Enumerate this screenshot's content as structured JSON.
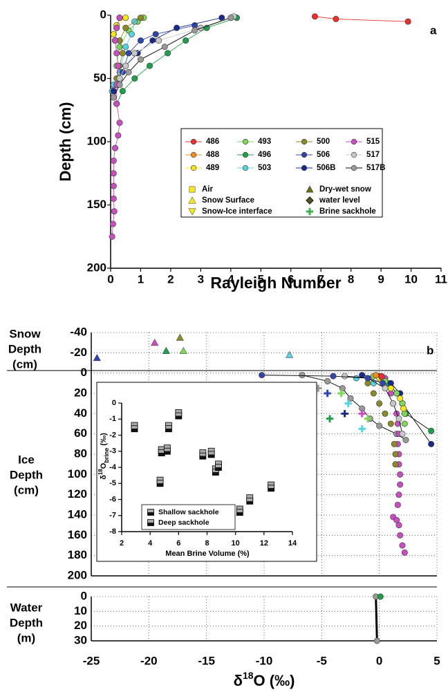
{
  "chart_data": [
    {
      "type": "line",
      "panel_label": "a",
      "xlabel": "Rayleigh Number",
      "ylabel": "Depth (cm)",
      "xlim": [
        0,
        11
      ],
      "xticks": [
        0,
        1,
        2,
        3,
        4,
        5,
        6,
        7,
        8,
        9,
        10,
        11
      ],
      "ylim": [
        200,
        0
      ],
      "yticks": [
        0,
        50,
        100,
        150,
        200
      ],
      "grid": false,
      "series": [
        {
          "name": "486",
          "color": "#e8312f",
          "marker": "circle",
          "line": true,
          "x": [
            6.8,
            7.5,
            9.9
          ],
          "values": [
            1,
            3,
            5
          ]
        },
        {
          "name": "488",
          "color": "#f58a20",
          "marker": "circle",
          "line": true,
          "x": [
            0.3,
            0.2,
            0.15
          ],
          "values": [
            2,
            10,
            20
          ]
        },
        {
          "name": "489",
          "color": "#f5e61e",
          "marker": "circle",
          "line": true,
          "x": [
            0.5,
            0.2,
            0.1
          ],
          "values": [
            2,
            8,
            15
          ]
        },
        {
          "name": "493",
          "color": "#7fd65b",
          "marker": "circle",
          "line": true,
          "x": [
            1.1,
            0.9,
            0.6,
            0.3,
            0.2
          ],
          "values": [
            2,
            5,
            12,
            25,
            40
          ]
        },
        {
          "name": "496",
          "color": "#1f9f4a",
          "marker": "circle",
          "line": true,
          "x": [
            4.2,
            3.2,
            2.5,
            1.9,
            1.3,
            0.8,
            0.4,
            0.2
          ],
          "values": [
            2,
            10,
            20,
            30,
            40,
            50,
            60,
            70
          ]
        },
        {
          "name": "503",
          "color": "#5bd1e0",
          "marker": "circle",
          "line": true,
          "x": [
            0.8,
            0.7,
            0.5,
            0.3,
            0.1,
            0.05
          ],
          "values": [
            5,
            15,
            25,
            45,
            55,
            60
          ]
        },
        {
          "name": "500",
          "color": "#8a8a2a",
          "marker": "circle",
          "line": true,
          "x": [
            1,
            0.5,
            0.3,
            0.4,
            0.3,
            0.2
          ],
          "values": [
            2,
            10,
            20,
            30,
            40,
            50
          ]
        },
        {
          "name": "506",
          "color": "#3344aa",
          "marker": "circle",
          "line": true,
          "x": [
            2.8,
            1.5,
            1,
            0.6,
            0.4
          ],
          "values": [
            8,
            15,
            20,
            30,
            45
          ]
        },
        {
          "name": "506B",
          "color": "#1a2a8a",
          "marker": "circle",
          "line": true,
          "x": [
            3.7,
            2.2,
            1.4,
            0.9,
            0.5,
            0.3,
            0.1
          ],
          "values": [
            2,
            10,
            20,
            30,
            40,
            50,
            60
          ]
        },
        {
          "name": "515",
          "color": "#c84fbf",
          "marker": "circle",
          "line": true,
          "x": [
            0.3,
            0.2,
            0.15,
            0.2,
            0.25,
            0.2,
            0.2,
            0.3,
            0.25,
            0.15,
            0.1,
            0.1,
            0.1,
            0.1,
            0.12,
            0.08,
            0.05
          ],
          "values": [
            2,
            10,
            20,
            30,
            40,
            55,
            70,
            85,
            95,
            105,
            115,
            125,
            135,
            145,
            155,
            165,
            175
          ]
        },
        {
          "name": "517",
          "color": "#c8c8c8",
          "marker": "circle",
          "line": true,
          "x": [
            4.1,
            3,
            1.6,
            0.8,
            0.5,
            0.3
          ],
          "values": [
            1,
            10,
            20,
            30,
            40,
            50
          ]
        },
        {
          "name": "517B",
          "color": "#999999",
          "marker": "circle",
          "line": true,
          "line_color": "#000000",
          "x": [
            4,
            2.8,
            1.8,
            1,
            0.6,
            0.3,
            0.1
          ],
          "values": [
            2,
            12,
            25,
            35,
            45,
            55,
            65
          ]
        }
      ],
      "marker_legend": [
        {
          "name": "Air",
          "color": "#f5e61e",
          "marker": "square"
        },
        {
          "name": "Snow Surface",
          "color": "#f5e61e",
          "marker": "tri-up"
        },
        {
          "name": "Snow-Ice interface",
          "color": "#f5e61e",
          "marker": "tri-down"
        },
        {
          "name": "Dry-wet snow",
          "color": "#6b6b1e",
          "marker": "tri-up"
        },
        {
          "name": "water level",
          "color": "#555522",
          "marker": "diamond"
        },
        {
          "name": "Brine sackhole",
          "color": "#3cb04a",
          "marker": "plus"
        }
      ]
    },
    {
      "type": "scatter",
      "panel_label": "b",
      "snow_ylabel_lines": [
        "Snow",
        "Depth",
        "(cm)"
      ],
      "ice_ylabel_lines": [
        "Ice",
        "Depth",
        "(cm)"
      ],
      "xlim": [
        -25,
        5
      ],
      "xticks": [
        -25,
        -20,
        -15,
        -10,
        -5,
        0,
        5
      ],
      "xtick_labels": false,
      "ylim": [
        200,
        -40
      ],
      "yticks": [
        -40,
        -20,
        0,
        20,
        40,
        60,
        80,
        100,
        120,
        140,
        160,
        180,
        200
      ],
      "grid": true,
      "series": [
        {
          "name": "517B",
          "color": "#999999",
          "marker": "circle",
          "line": true,
          "line_color": "#000000",
          "x": [
            -6.7,
            -4.5,
            -3.2,
            -2.5,
            -1.5,
            -0.8,
            0,
            1.5,
            2.3
          ],
          "values": [
            2,
            8,
            15,
            25,
            35,
            45,
            52,
            60,
            66
          ]
        },
        {
          "name": "515",
          "color": "#c84fbf",
          "marker": "circle",
          "line": false,
          "x": [
            0.5,
            0.8,
            1,
            1.2,
            1.5,
            1.6,
            1.7,
            1.6,
            1.7,
            1.7,
            1.8,
            1.8,
            1.7,
            1.6,
            1.2,
            1.5,
            1.7,
            1.8,
            2,
            2.2
          ],
          "values": [
            5,
            10,
            20,
            30,
            40,
            50,
            60,
            70,
            80,
            90,
            100,
            110,
            120,
            130,
            142,
            145,
            150,
            160,
            170,
            177
          ]
        },
        {
          "name": "496",
          "color": "#1f9f4a",
          "marker": "circle",
          "line": true,
          "line_color": "#000000",
          "x": [
            0,
            0.8,
            1.5,
            2,
            2.3,
            4.5
          ],
          "values": [
            3,
            10,
            20,
            30,
            40,
            57
          ]
        },
        {
          "name": "506B",
          "color": "#1a2a8a",
          "marker": "circle",
          "line": true,
          "line_color": "#000000",
          "x": [
            -1.5,
            0,
            1,
            1.8,
            2,
            4.5
          ],
          "values": [
            2,
            4,
            10,
            20,
            30,
            70
          ]
        },
        {
          "name": "500",
          "color": "#8a8a2a",
          "marker": "circle",
          "line": false,
          "x": [
            -1,
            -0.5,
            0,
            0.5,
            1,
            1.3,
            1.4,
            1.4
          ],
          "values": [
            10,
            20,
            30,
            40,
            50,
            70,
            80,
            90
          ]
        },
        {
          "name": "493",
          "color": "#7fd65b",
          "marker": "circle",
          "line": false,
          "x": [
            -0.5,
            0.5,
            1.5,
            2,
            2.2,
            2.2
          ],
          "values": [
            3,
            8,
            20,
            30,
            40,
            50
          ]
        },
        {
          "name": "489",
          "color": "#f5e61e",
          "marker": "circle",
          "line": false,
          "x": [
            0,
            1,
            1.8,
            2.1
          ],
          "values": [
            5,
            15,
            25,
            35
          ]
        },
        {
          "name": "488",
          "color": "#f58a20",
          "marker": "circle",
          "line": false,
          "x": [
            -0.3,
            0.2
          ],
          "values": [
            2,
            4
          ]
        },
        {
          "name": "486",
          "color": "#e8312f",
          "marker": "circle",
          "line": false,
          "x": [
            0.2
          ],
          "values": [
            3
          ]
        },
        {
          "name": "503",
          "color": "#5bd1e0",
          "marker": "circle",
          "line": false,
          "x": [
            -2,
            -0.5
          ],
          "values": [
            5,
            10
          ]
        },
        {
          "name": "517",
          "color": "#c8c8c8",
          "marker": "circle",
          "line": true,
          "line_color": "#000000",
          "x": [
            -3,
            -1,
            0.5,
            1.2,
            1.7,
            2
          ],
          "values": [
            3,
            5,
            15,
            30,
            45,
            60
          ]
        },
        {
          "name": "506",
          "color": "#3344aa",
          "marker": "circle",
          "line": true,
          "line_color": "#000000",
          "x": [
            -10.2,
            -4,
            -1,
            0.3
          ],
          "values": [
            2,
            3,
            5,
            10
          ]
        },
        {
          "name": "Snow Surface",
          "marker": "tri-up",
          "line": false,
          "colors": [
            "#3344aa",
            "#c84fbf",
            "#1f9f4a",
            "#8a8a2a",
            "#7fd65b",
            "#5bd1e0"
          ],
          "x": [
            -24.5,
            -19.5,
            -18.5,
            -17.3,
            -17,
            -7.8
          ],
          "values": [
            -15,
            -30,
            -22,
            -35,
            -22,
            -18
          ]
        },
        {
          "name": "Brine sackhole",
          "marker": "plus",
          "line": false,
          "colors": [
            "#1f9f4a",
            "#999999",
            "#c8c8c8",
            "#1f9f4a",
            "#7fd65b",
            "#3344aa",
            "#5bd1e0",
            "#1a2a8a",
            "#c84fbf",
            "#7fd65b",
            "#5bd1e0"
          ],
          "x": [
            -12.8,
            -5.3,
            -6.2,
            -4.3,
            -3.3,
            -4.5,
            -2.7,
            -3,
            -1.5,
            -1,
            -1.5
          ],
          "values": [
            20,
            15,
            45,
            45,
            20,
            20,
            30,
            40,
            40,
            45,
            55
          ]
        }
      ]
    },
    {
      "type": "scatter",
      "water_ylabel_lines": [
        "Water",
        "Depth",
        "(m)"
      ],
      "xlabel_parts": [
        "δ",
        "18",
        "O (‰)"
      ],
      "xlim": [
        -25,
        5
      ],
      "xticks": [
        -25,
        -20,
        -15,
        -10,
        -5,
        0,
        5
      ],
      "ylim": [
        30,
        0
      ],
      "yticks": [
        0,
        10,
        20,
        30
      ],
      "grid": true,
      "series": [
        {
          "name": "517B",
          "color": "#999999",
          "marker": "circle",
          "line": true,
          "line_color": "#000000",
          "x": [
            -0.3,
            -0.2
          ],
          "values": [
            0,
            30
          ]
        },
        {
          "name": "496",
          "color": "#1f9f4a",
          "marker": "circle",
          "line": false,
          "x": [
            0.1
          ],
          "values": [
            0
          ]
        }
      ]
    },
    {
      "type": "scatter",
      "xlabel": "Mean Brine Volume (%)",
      "ylabel_parts": [
        "δ",
        "18",
        "O",
        "brine",
        " (‰)"
      ],
      "xlim": [
        2,
        14
      ],
      "xticks": [
        2,
        4,
        6,
        8,
        10,
        12,
        14
      ],
      "ylim": [
        -8,
        0
      ],
      "yticks": [
        0,
        -1,
        -2,
        -3,
        -4,
        -5,
        -6,
        -7,
        -8
      ],
      "grid": false,
      "series": [
        {
          "name": "Shallow sackhole",
          "marker": "half",
          "color": "#aaaaaa",
          "line": false,
          "x": [
            2.9,
            4.8,
            5.2,
            5.3,
            6,
            4.7,
            7.7,
            8.3,
            8.6,
            8.8,
            10.3,
            11,
            12.5
          ],
          "values": [
            -1.4,
            -2.9,
            -2.8,
            -1.4,
            -0.6,
            -4.8,
            -3.1,
            -3,
            -4.1,
            -3.8,
            -6.6,
            -5.9,
            -5.1
          ]
        },
        {
          "name": "Deep sackhole",
          "marker": "half",
          "color": "#222222",
          "line": false,
          "x": [
            2.9,
            4.8,
            5.2,
            5.3,
            6,
            4.7,
            7.7,
            8.3,
            8.6,
            8.8,
            10.3,
            11,
            12.5
          ],
          "values": [
            -1.6,
            -3.1,
            -3,
            -1.6,
            -0.8,
            -5,
            -3.3,
            -3.2,
            -4.3,
            -4,
            -6.8,
            -6.1,
            -5.3
          ]
        }
      ]
    }
  ]
}
